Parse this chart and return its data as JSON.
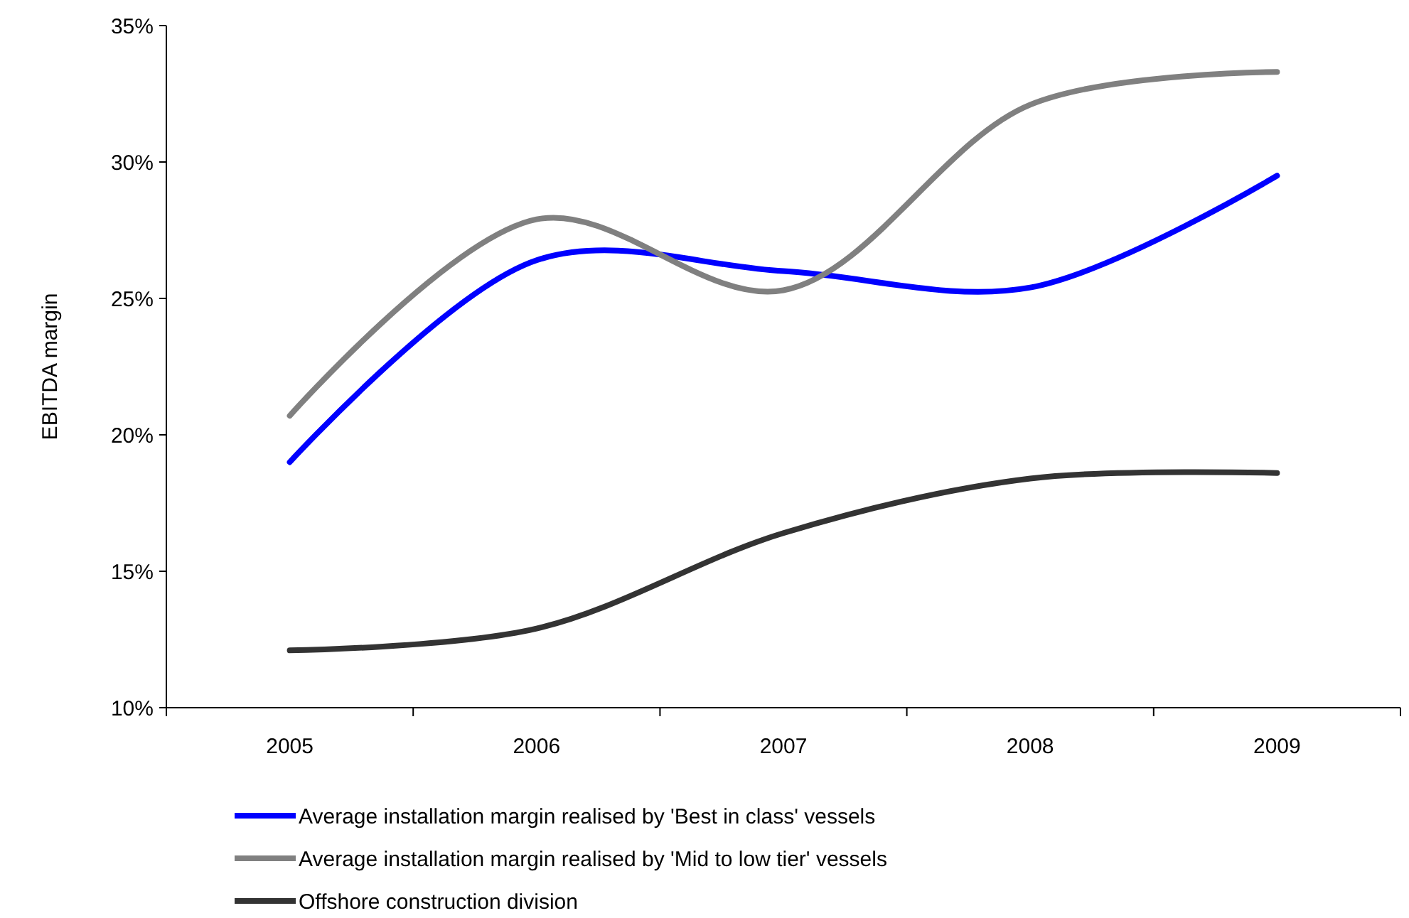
{
  "chart_data": {
    "type": "line",
    "ylabel": "EBITDA margin",
    "categories": [
      "2005",
      "2006",
      "2007",
      "2008",
      "2009"
    ],
    "ylim": [
      10,
      35
    ],
    "yticks": [
      {
        "value": 10,
        "label": "10%"
      },
      {
        "value": 15,
        "label": "15%"
      },
      {
        "value": 20,
        "label": "20%"
      },
      {
        "value": 25,
        "label": "25%"
      },
      {
        "value": 30,
        "label": "30%"
      },
      {
        "value": 35,
        "label": "35%"
      }
    ],
    "series": [
      {
        "name": "Average installation margin realised by 'Best in class' vessels",
        "color": "#0000ff",
        "values": [
          19.0,
          26.4,
          26.0,
          25.4,
          29.5
        ]
      },
      {
        "name": "Average installation margin realised by 'Mid to low tier' vessels",
        "color": "#808080",
        "values": [
          20.7,
          27.9,
          25.3,
          32.1,
          33.3
        ]
      },
      {
        "name": "Offshore construction division",
        "color": "#333333",
        "values": [
          12.1,
          12.9,
          16.4,
          18.4,
          18.6
        ]
      }
    ],
    "legend": "bottom",
    "grid": false,
    "marker": "none",
    "line_style": "solid"
  }
}
